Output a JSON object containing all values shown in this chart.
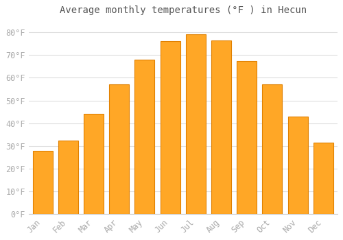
{
  "title": "Average monthly temperatures (°F ) in Hecun",
  "months": [
    "Jan",
    "Feb",
    "Mar",
    "Apr",
    "May",
    "Jun",
    "Jul",
    "Aug",
    "Sep",
    "Oct",
    "Nov",
    "Dec"
  ],
  "values": [
    28,
    32.5,
    44,
    57,
    68,
    76,
    79,
    76.5,
    67.5,
    57,
    43,
    31.5
  ],
  "bar_color": "#FFA726",
  "bar_edge_color": "#E08000",
  "background_color": "#FFFFFF",
  "plot_bg_color": "#FFFFFF",
  "grid_color": "#DDDDDD",
  "ylim": [
    0,
    85
  ],
  "yticks": [
    0,
    10,
    20,
    30,
    40,
    50,
    60,
    70,
    80
  ],
  "title_fontsize": 10,
  "tick_fontsize": 8.5,
  "tick_label_color": "#AAAAAA",
  "title_color": "#555555",
  "bar_width": 0.78
}
